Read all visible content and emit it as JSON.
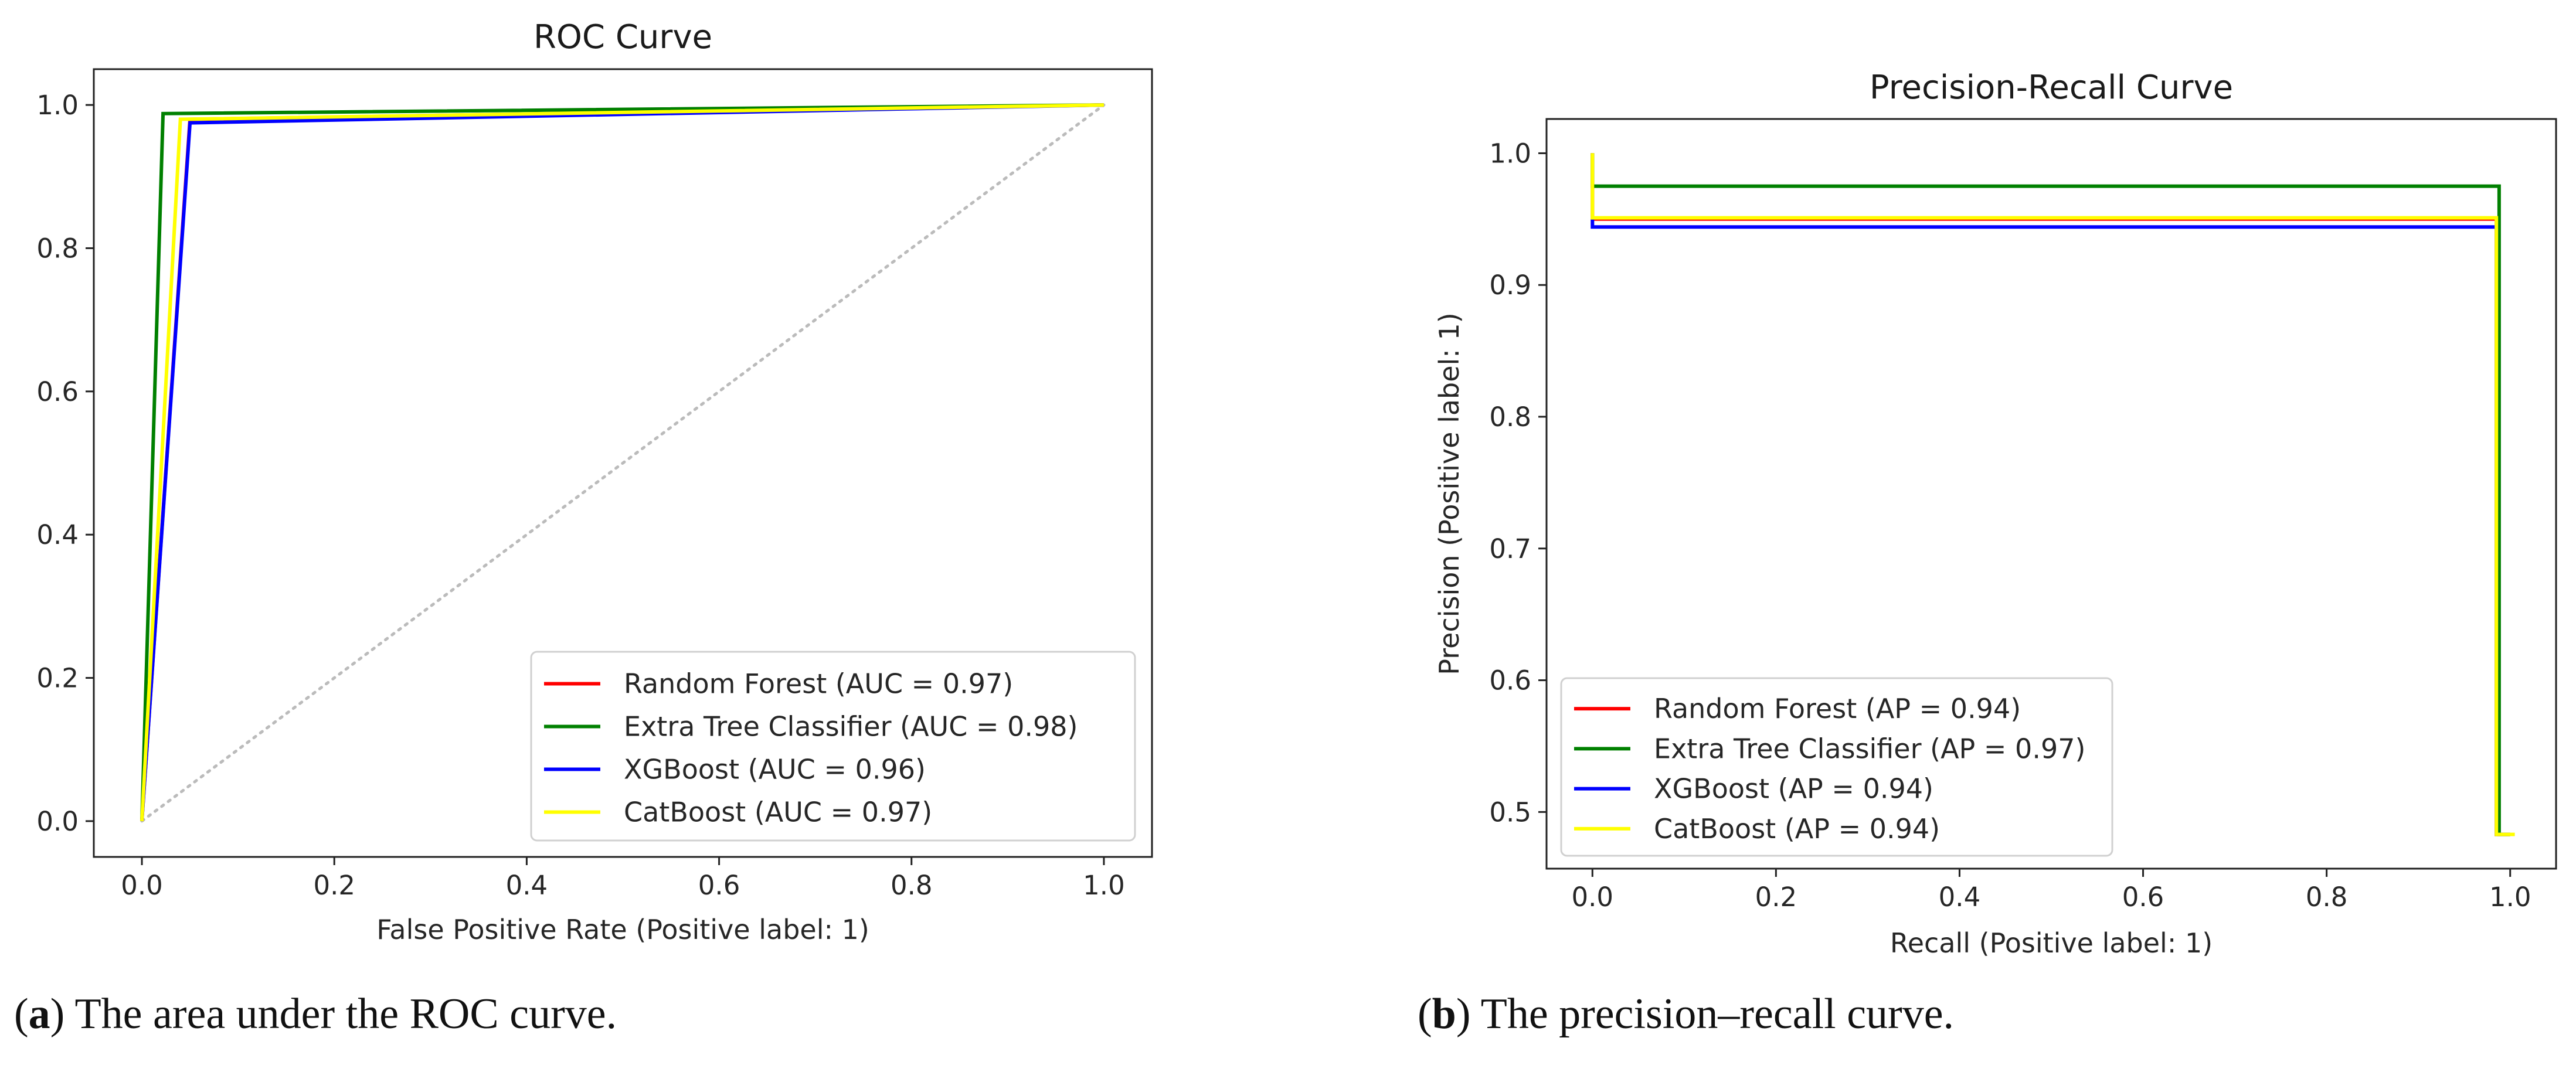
{
  "chart_data": [
    {
      "type": "line",
      "title": "ROC Curve",
      "xlabel": "False Positive Rate (Positive label: 1)",
      "ylabel": "",
      "xlim": [
        -0.05,
        1.05
      ],
      "ylim": [
        -0.05,
        1.05
      ],
      "xticks": [
        0.0,
        0.2,
        0.4,
        0.6,
        0.8,
        1.0
      ],
      "yticks": [
        0.0,
        0.2,
        0.4,
        0.6,
        0.8,
        1.0
      ],
      "tick_labels_x": [
        "0.0",
        "0.2",
        "0.4",
        "0.6",
        "0.8",
        "1.0"
      ],
      "tick_labels_y": [
        "0.0",
        "0.2",
        "0.4",
        "0.6",
        "0.8",
        "1.0"
      ],
      "grid": false,
      "legend_position": "lower-right",
      "series": [
        {
          "name": "Random Forest (AUC = 0.97)",
          "color": "#ff0000",
          "x": [
            0,
            0.05,
            1
          ],
          "y": [
            0,
            0.98,
            1
          ]
        },
        {
          "name": "Extra Tree Classifier (AUC = 0.98)",
          "color": "#008000",
          "x": [
            0,
            0.022,
            1
          ],
          "y": [
            0,
            0.988,
            1
          ]
        },
        {
          "name": "XGBoost (AUC = 0.96)",
          "color": "#0000ff",
          "x": [
            0,
            0.05,
            1
          ],
          "y": [
            0,
            0.975,
            1
          ]
        },
        {
          "name": "CatBoost (AUC = 0.97)",
          "color": "#ffff00",
          "x": [
            0,
            0.04,
            1
          ],
          "y": [
            0,
            0.98,
            1
          ]
        }
      ],
      "reference_line": {
        "x": [
          0,
          1
        ],
        "y": [
          0,
          1
        ],
        "color": "#bbbbbb",
        "style": "dotted"
      }
    },
    {
      "type": "line",
      "title": "Precision-Recall Curve",
      "xlabel": "Recall (Positive label: 1)",
      "ylabel": "Precision (Positive label: 1)",
      "xlim": [
        -0.05,
        1.05
      ],
      "ylim": [
        0.457,
        1.026
      ],
      "xticks": [
        0.0,
        0.2,
        0.4,
        0.6,
        0.8,
        1.0
      ],
      "yticks": [
        0.5,
        0.6,
        0.7,
        0.8,
        0.9,
        1.0
      ],
      "tick_labels_x": [
        "0.0",
        "0.2",
        "0.4",
        "0.6",
        "0.8",
        "1.0"
      ],
      "tick_labels_y": [
        "0.5",
        "0.6",
        "0.7",
        "0.8",
        "0.9",
        "1.0"
      ],
      "grid": false,
      "legend_position": "lower-left",
      "series": [
        {
          "name": "Random Forest (AP = 0.94)",
          "color": "#ff0000",
          "x": [
            0,
            0,
            0.985,
            0.985,
            1
          ],
          "y": [
            1.0,
            0.95,
            0.95,
            0.483,
            0.483
          ]
        },
        {
          "name": "Extra Tree Classifier (AP = 0.97)",
          "color": "#008000",
          "x": [
            0,
            0,
            0.988,
            0.988,
            1
          ],
          "y": [
            1.0,
            0.975,
            0.975,
            0.483,
            0.483
          ]
        },
        {
          "name": "XGBoost (AP = 0.94)",
          "color": "#0000ff",
          "x": [
            0,
            0,
            0.985,
            0.985,
            1
          ],
          "y": [
            0.95,
            0.944,
            0.944,
            0.483,
            0.483
          ]
        },
        {
          "name": "CatBoost (AP = 0.94)",
          "color": "#ffff00",
          "x": [
            0,
            0,
            0.985,
            0.985,
            1.005
          ],
          "y": [
            1.0,
            0.951,
            0.951,
            0.483,
            0.483
          ]
        }
      ]
    }
  ],
  "captions": {
    "a_label": "a",
    "a_text": ") The area under the ROC curve.",
    "b_label": "b",
    "b_text": ") The precision–recall curve."
  }
}
